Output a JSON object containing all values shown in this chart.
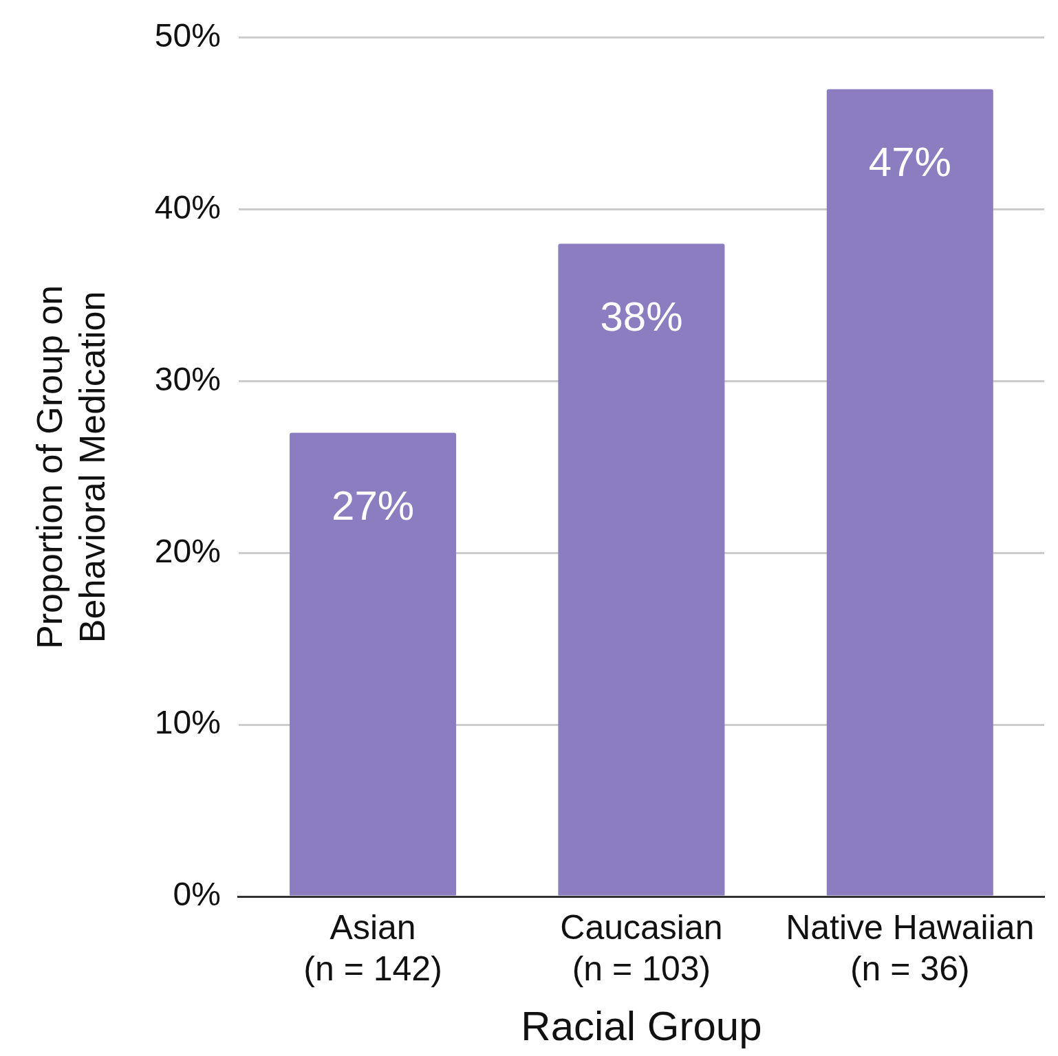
{
  "chart_data": {
    "type": "bar",
    "xlabel": "Racial Group",
    "ylabel": "Proportion of Group on\nBehavioral Medication",
    "categories": [
      "Asian\n(n = 142)",
      "Caucasian\n(n = 103)",
      "Native Hawaiian\n(n = 36)"
    ],
    "values": [
      27,
      38,
      47
    ],
    "value_labels": [
      "27%",
      "38%",
      "47%"
    ],
    "color": "#8c7dc0",
    "ylim": [
      0,
      50
    ],
    "yticks": [
      {
        "value": 0,
        "label": "0%"
      },
      {
        "value": 10,
        "label": "10%"
      },
      {
        "value": 20,
        "label": "20%"
      },
      {
        "value": 30,
        "label": "30%"
      },
      {
        "value": 40,
        "label": "40%"
      },
      {
        "value": 50,
        "label": "50%"
      }
    ],
    "grid": "y",
    "legend": false
  }
}
